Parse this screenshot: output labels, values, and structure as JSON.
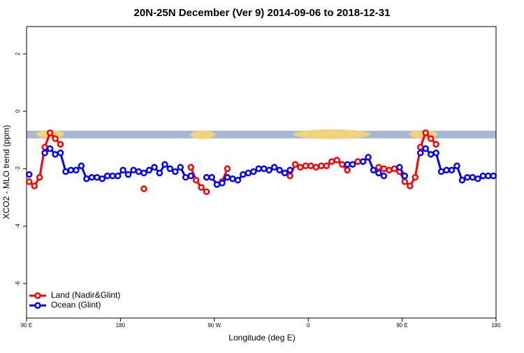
{
  "chart_data": {
    "type": "line",
    "title": "20N-25N December (Ver 9)   2014-09-06 to 2018-12-31",
    "x_label": "Longitude (deg E)",
    "y_label": "XCO2 - MLO trend (ppm)",
    "xlim": [
      90,
      540
    ],
    "ylim": [
      -7.2,
      2.95
    ],
    "xticks": [
      {
        "value": 90,
        "label": "90 E"
      },
      180,
      {
        "value": 270,
        "label": "90 W"
      },
      {
        "value": 360,
        "label": "0"
      },
      {
        "value": 450,
        "label": "90 E"
      },
      {
        "value": 540,
        "label": "180"
      }
    ],
    "yticks": [
      -6,
      -4,
      -2,
      0,
      2
    ],
    "legend": "bottom-left",
    "x": [
      92.5,
      97.5,
      102.5,
      107.5,
      112.5,
      117.5,
      122.5,
      127.5,
      132.5,
      137.5,
      142.5,
      147.5,
      152.5,
      157.5,
      162.5,
      167.5,
      172.5,
      177.5,
      182.5,
      187.5,
      192.5,
      197.5,
      202.5,
      207.5,
      212.5,
      217.5,
      222.5,
      227.5,
      232.5,
      237.5,
      242.5,
      247.5,
      252.5,
      257.5,
      262.5,
      267.5,
      272.5,
      277.5,
      282.5,
      287.5,
      292.5,
      297.5,
      302.5,
      307.5,
      312.5,
      317.5,
      322.5,
      327.5,
      332.5,
      337.5,
      342.5,
      347.5,
      352.5,
      357.5,
      362.5,
      367.5,
      372.5,
      377.5,
      382.5,
      387.5,
      392.5,
      397.5,
      402.5,
      407.5,
      412.5,
      417.5,
      422.5,
      427.5,
      432.5,
      437.5,
      442.5,
      447.5,
      452.5,
      457.5,
      462.5,
      467.5,
      472.5,
      477.5,
      482.5,
      487.5,
      492.5,
      497.5,
      502.5,
      507.5,
      512.5,
      517.5,
      522.5,
      527.5,
      532.5,
      537.5
    ],
    "series": [
      {
        "name": "Land (Nadir&Glint)",
        "color": "#ff0000",
        "values": [
          -2.45,
          -2.6,
          -2.3,
          -1.25,
          -0.75,
          -0.95,
          -1.15,
          null,
          null,
          null,
          null,
          null,
          null,
          null,
          null,
          null,
          null,
          null,
          null,
          null,
          null,
          null,
          -2.7,
          null,
          null,
          null,
          null,
          null,
          null,
          null,
          null,
          -1.95,
          -2.4,
          -2.65,
          -2.8,
          null,
          null,
          -2.45,
          -2.0,
          null,
          null,
          null,
          null,
          null,
          null,
          null,
          null,
          null,
          null,
          null,
          -2.25,
          -1.85,
          -1.95,
          -1.9,
          -1.9,
          -1.95,
          -1.9,
          -1.9,
          -1.75,
          -1.7,
          -1.85,
          -2.05,
          null,
          -1.75,
          -1.75,
          null,
          null,
          -1.95,
          -2.0,
          -2.05,
          -2.0,
          -2.1,
          -2.45,
          -2.6,
          -2.3,
          -1.25,
          -0.75,
          -0.95,
          -1.15,
          null,
          null,
          null,
          null,
          null,
          null,
          null,
          null,
          null,
          null,
          null
        ]
      },
      {
        "name": "Ocean (Glint)",
        "color": "#0000ff",
        "values": [
          -2.2,
          null,
          null,
          -1.45,
          -1.3,
          -1.5,
          -1.45,
          -2.1,
          -2.05,
          -2.05,
          -1.9,
          -2.35,
          -2.3,
          -2.3,
          -2.35,
          -2.25,
          -2.25,
          -2.25,
          -2.05,
          -2.2,
          -2.05,
          -2.1,
          -2.15,
          -2.05,
          -1.95,
          -2.15,
          -1.85,
          -2.0,
          -2.1,
          -1.95,
          -2.3,
          -2.25,
          null,
          null,
          -2.3,
          -2.3,
          -2.55,
          -2.5,
          -2.3,
          -2.35,
          -2.4,
          -2.2,
          -2.15,
          -2.1,
          -2.0,
          -2.0,
          -2.05,
          -1.95,
          -2.05,
          -2.15,
          -2.05,
          null,
          null,
          null,
          null,
          null,
          null,
          null,
          null,
          null,
          null,
          -1.85,
          -1.85,
          null,
          -1.75,
          -1.6,
          -2.05,
          -2.15,
          -2.25,
          null,
          null,
          -1.95,
          -2.25,
          null,
          null,
          -1.45,
          -1.3,
          -1.5,
          -1.45,
          -2.1,
          -2.05,
          -2.05,
          -1.9,
          -2.4,
          -2.3,
          -2.3,
          -2.35,
          -2.25,
          -2.25,
          -2.25
        ]
      }
    ]
  }
}
